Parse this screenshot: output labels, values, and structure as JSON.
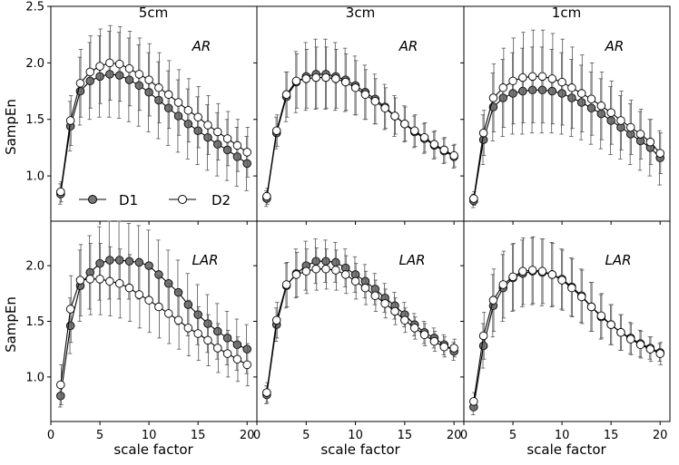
{
  "chart_data": {
    "type": "line",
    "layout": "2 rows x 3 columns, shared axes",
    "column_titles": [
      "5cm",
      "3cm",
      "1cm"
    ],
    "row_labels": [
      "AR",
      "LAR"
    ],
    "xlabel": "scale factor",
    "ylabel": "SampEn",
    "xlim": [
      0,
      21
    ],
    "xticks": [
      0,
      5,
      10,
      15,
      20
    ],
    "ylim_top": [
      0.6,
      2.5
    ],
    "yticks_top": [
      1.0,
      1.5,
      2.0,
      2.5
    ],
    "ylim_bottom": [
      0.6,
      2.4
    ],
    "yticks_bottom": [
      1.0,
      1.5,
      2.0
    ],
    "legend": {
      "position": "lower-left of top-left panel",
      "entries": [
        "D1",
        "D2"
      ]
    },
    "series_style": {
      "D1": "#777777",
      "D2": "#ffffff"
    },
    "x": [
      1,
      2,
      3,
      4,
      5,
      6,
      7,
      8,
      9,
      10,
      11,
      12,
      13,
      14,
      15,
      16,
      17,
      18,
      19,
      20
    ],
    "panels": [
      {
        "row": "AR",
        "column": "5cm",
        "series": [
          {
            "name": "D1",
            "values": [
              0.84,
              1.44,
              1.75,
              1.84,
              1.88,
              1.9,
              1.89,
              1.85,
              1.8,
              1.74,
              1.67,
              1.6,
              1.53,
              1.46,
              1.4,
              1.34,
              1.28,
              1.23,
              1.17,
              1.11
            ],
            "err": [
              0.09,
              0.22,
              0.3,
              0.34,
              0.36,
              0.38,
              0.38,
              0.37,
              0.36,
              0.35,
              0.34,
              0.33,
              0.32,
              0.31,
              0.3,
              0.29,
              0.28,
              0.27,
              0.26,
              0.24
            ]
          },
          {
            "name": "D2",
            "values": [
              0.86,
              1.49,
              1.82,
              1.92,
              1.97,
              2.0,
              1.99,
              1.95,
              1.9,
              1.85,
              1.78,
              1.72,
              1.65,
              1.58,
              1.52,
              1.45,
              1.39,
              1.33,
              1.27,
              1.21
            ],
            "err": [
              0.09,
              0.22,
              0.3,
              0.32,
              0.33,
              0.33,
              0.33,
              0.33,
              0.32,
              0.32,
              0.31,
              0.3,
              0.29,
              0.28,
              0.27,
              0.26,
              0.25,
              0.24,
              0.23,
              0.22
            ]
          }
        ]
      },
      {
        "row": "AR",
        "column": "3cm",
        "series": [
          {
            "name": "D1",
            "values": [
              0.8,
              1.38,
              1.7,
              1.83,
              1.88,
              1.9,
              1.9,
              1.88,
              1.85,
              1.8,
              1.74,
              1.68,
              1.61,
              1.53,
              1.46,
              1.39,
              1.33,
              1.27,
              1.22,
              1.17
            ],
            "err": [
              0.07,
              0.14,
              0.22,
              0.27,
              0.3,
              0.31,
              0.31,
              0.3,
              0.28,
              0.26,
              0.24,
              0.22,
              0.2,
              0.18,
              0.16,
              0.14,
              0.13,
              0.12,
              0.11,
              0.1
            ]
          },
          {
            "name": "D2",
            "values": [
              0.82,
              1.4,
              1.72,
              1.84,
              1.86,
              1.87,
              1.87,
              1.86,
              1.83,
              1.78,
              1.72,
              1.66,
              1.6,
              1.53,
              1.46,
              1.4,
              1.34,
              1.28,
              1.23,
              1.18
            ],
            "err": [
              0.07,
              0.14,
              0.2,
              0.24,
              0.26,
              0.27,
              0.27,
              0.26,
              0.25,
              0.24,
              0.22,
              0.2,
              0.18,
              0.16,
              0.15,
              0.14,
              0.13,
              0.12,
              0.11,
              0.1
            ]
          }
        ]
      },
      {
        "row": "AR",
        "column": "1cm",
        "series": [
          {
            "name": "D1",
            "values": [
              0.78,
              1.32,
              1.61,
              1.69,
              1.73,
              1.75,
              1.76,
              1.76,
              1.75,
              1.73,
              1.69,
              1.65,
              1.6,
              1.55,
              1.49,
              1.43,
              1.37,
              1.31,
              1.25,
              1.16
            ],
            "err": [
              0.06,
              0.22,
              0.3,
              0.34,
              0.36,
              0.38,
              0.38,
              0.38,
              0.37,
              0.36,
              0.34,
              0.33,
              0.32,
              0.31,
              0.3,
              0.28,
              0.27,
              0.26,
              0.25,
              0.24
            ]
          },
          {
            "name": "D2",
            "values": [
              0.8,
              1.38,
              1.69,
              1.78,
              1.84,
              1.87,
              1.88,
              1.88,
              1.86,
              1.83,
              1.78,
              1.73,
              1.68,
              1.62,
              1.56,
              1.49,
              1.43,
              1.37,
              1.3,
              1.2
            ],
            "err": [
              0.06,
              0.2,
              0.3,
              0.35,
              0.38,
              0.4,
              0.41,
              0.41,
              0.4,
              0.38,
              0.36,
              0.34,
              0.32,
              0.3,
              0.28,
              0.26,
              0.24,
              0.22,
              0.2,
              0.18
            ]
          }
        ]
      },
      {
        "row": "LAR",
        "column": "5cm",
        "series": [
          {
            "name": "D1",
            "values": [
              0.83,
              1.46,
              1.82,
              1.94,
              2.02,
              2.05,
              2.05,
              2.04,
              2.03,
              2.0,
              1.92,
              1.84,
              1.76,
              1.65,
              1.56,
              1.48,
              1.41,
              1.35,
              1.29,
              1.25
            ],
            "err": [
              0.1,
              0.25,
              0.32,
              0.33,
              0.33,
              0.35,
              0.35,
              0.34,
              0.33,
              0.32,
              0.31,
              0.3,
              0.29,
              0.28,
              0.27,
              0.26,
              0.25,
              0.24,
              0.23,
              0.22
            ]
          },
          {
            "name": "D2",
            "values": [
              0.93,
              1.61,
              1.87,
              1.88,
              1.88,
              1.86,
              1.84,
              1.8,
              1.74,
              1.69,
              1.63,
              1.57,
              1.51,
              1.44,
              1.39,
              1.33,
              1.26,
              1.21,
              1.16,
              1.11
            ],
            "err": [
              0.18,
              0.3,
              0.32,
              0.32,
              0.32,
              0.31,
              0.31,
              0.3,
              0.3,
              0.29,
              0.28,
              0.27,
              0.26,
              0.25,
              0.24,
              0.23,
              0.22,
              0.21,
              0.2,
              0.19
            ]
          }
        ]
      },
      {
        "row": "LAR",
        "column": "3cm",
        "series": [
          {
            "name": "D1",
            "values": [
              0.84,
              1.47,
              1.82,
              1.93,
              2.0,
              2.04,
              2.04,
              2.03,
              1.98,
              1.92,
              1.86,
              1.79,
              1.71,
              1.64,
              1.56,
              1.47,
              1.4,
              1.35,
              1.29,
              1.23
            ],
            "err": [
              0.08,
              0.15,
              0.2,
              0.22,
              0.22,
              0.2,
              0.19,
              0.18,
              0.17,
              0.16,
              0.15,
              0.14,
              0.13,
              0.12,
              0.11,
              0.1,
              0.1,
              0.09,
              0.09,
              0.08
            ]
          },
          {
            "name": "D2",
            "values": [
              0.86,
              1.51,
              1.83,
              1.92,
              1.95,
              1.97,
              1.97,
              1.96,
              1.92,
              1.86,
              1.8,
              1.73,
              1.66,
              1.59,
              1.51,
              1.44,
              1.38,
              1.32,
              1.27,
              1.26
            ],
            "err": [
              0.09,
              0.16,
              0.2,
              0.2,
              0.2,
              0.19,
              0.18,
              0.18,
              0.17,
              0.16,
              0.15,
              0.14,
              0.13,
              0.12,
              0.11,
              0.1,
              0.1,
              0.09,
              0.09,
              0.08
            ]
          }
        ]
      },
      {
        "row": "LAR",
        "column": "1cm",
        "series": [
          {
            "name": "D1",
            "values": [
              0.73,
              1.28,
              1.64,
              1.8,
              1.89,
              1.93,
              1.95,
              1.94,
              1.92,
              1.88,
              1.81,
              1.73,
              1.63,
              1.54,
              1.47,
              1.4,
              1.35,
              1.3,
              1.26,
              1.22
            ],
            "err": [
              0.07,
              0.2,
              0.28,
              0.3,
              0.3,
              0.3,
              0.3,
              0.3,
              0.29,
              0.27,
              0.26,
              0.24,
              0.22,
              0.2,
              0.18,
              0.16,
              0.14,
              0.12,
              0.1,
              0.08
            ]
          },
          {
            "name": "D2",
            "values": [
              0.78,
              1.37,
              1.69,
              1.83,
              1.9,
              1.95,
              1.96,
              1.95,
              1.92,
              1.87,
              1.8,
              1.72,
              1.63,
              1.55,
              1.47,
              1.4,
              1.34,
              1.29,
              1.25,
              1.21
            ],
            "err": [
              0.08,
              0.21,
              0.28,
              0.3,
              0.3,
              0.3,
              0.3,
              0.29,
              0.28,
              0.27,
              0.26,
              0.24,
              0.22,
              0.2,
              0.18,
              0.16,
              0.14,
              0.12,
              0.11,
              0.1
            ]
          }
        ]
      }
    ]
  }
}
